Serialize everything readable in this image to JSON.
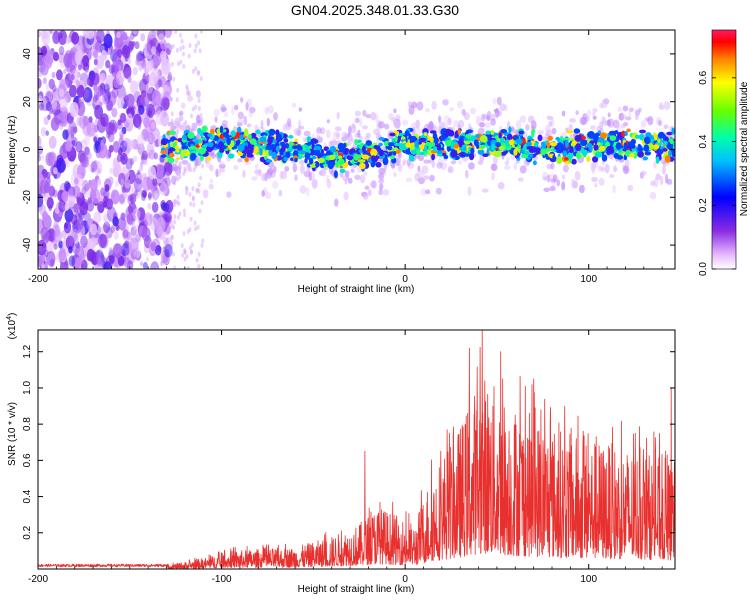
{
  "title": "GN04.2025.348.01.33.G30",
  "chart_data": [
    {
      "type": "heatmap",
      "name": "spectrogram",
      "xlabel": "Height of straight line (km)",
      "ylabel": "Frequency (Hz)",
      "xlim": [
        -200,
        147
      ],
      "ylim": [
        -50,
        50
      ],
      "xticks": [
        -200,
        -100,
        0,
        100
      ],
      "yticks": [
        -40,
        -20,
        0,
        20,
        40
      ],
      "colorbar": {
        "label": "Normalized spectral amplitude",
        "range": [
          0,
          0.75
        ],
        "ticks": [
          0.0,
          0.2,
          0.4,
          0.6
        ]
      },
      "ridge_centerline": [
        {
          "x": -130,
          "y": 1
        },
        {
          "x": -115,
          "y": 2
        },
        {
          "x": -100,
          "y": 3
        },
        {
          "x": -85,
          "y": 2
        },
        {
          "x": -70,
          "y": 1
        },
        {
          "x": -55,
          "y": -1
        },
        {
          "x": -40,
          "y": -4
        },
        {
          "x": -30,
          "y": -3
        },
        {
          "x": -15,
          "y": -1
        },
        {
          "x": 0,
          "y": 2
        },
        {
          "x": 15,
          "y": 2
        },
        {
          "x": 30,
          "y": 2
        },
        {
          "x": 45,
          "y": 2
        },
        {
          "x": 60,
          "y": 3
        },
        {
          "x": 75,
          "y": 0
        },
        {
          "x": 90,
          "y": 1
        },
        {
          "x": 105,
          "y": 2
        },
        {
          "x": 120,
          "y": 2
        },
        {
          "x": 147,
          "y": 2
        }
      ]
    },
    {
      "type": "line",
      "name": "snr",
      "xlabel": "Height of straight line (km)",
      "ylabel": "SNR (10 * v/v)",
      "y_scale_label": "(x10",
      "y_scale_exponent": "4",
      "xlim": [
        -200,
        147
      ],
      "ylim": [
        0,
        1.32
      ],
      "xticks": [
        -200,
        -100,
        0,
        100
      ],
      "yticks": [
        0.2,
        0.4,
        0.6,
        0.8,
        1.0,
        1.2
      ],
      "envelope": [
        {
          "x": -200,
          "y": 0.02
        },
        {
          "x": -150,
          "y": 0.02
        },
        {
          "x": -125,
          "y": 0.03
        },
        {
          "x": -110,
          "y": 0.06
        },
        {
          "x": -95,
          "y": 0.1
        },
        {
          "x": -80,
          "y": 0.11
        },
        {
          "x": -60,
          "y": 0.12
        },
        {
          "x": -40,
          "y": 0.18
        },
        {
          "x": -25,
          "y": 0.25
        },
        {
          "x": -15,
          "y": 0.35
        },
        {
          "x": -5,
          "y": 0.3
        },
        {
          "x": 5,
          "y": 0.25
        },
        {
          "x": 15,
          "y": 0.55
        },
        {
          "x": 30,
          "y": 0.8
        },
        {
          "x": 42,
          "y": 1.1
        },
        {
          "x": 55,
          "y": 0.95
        },
        {
          "x": 70,
          "y": 0.85
        },
        {
          "x": 90,
          "y": 0.75
        },
        {
          "x": 110,
          "y": 0.7
        },
        {
          "x": 130,
          "y": 0.65
        },
        {
          "x": 147,
          "y": 0.6
        }
      ],
      "peaks": [
        {
          "x": 42,
          "y": 1.32
        },
        {
          "x": 35,
          "y": 1.22
        },
        {
          "x": 52,
          "y": 1.2
        },
        {
          "x": 70,
          "y": 1.05
        },
        {
          "x": 145,
          "y": 1.0
        },
        {
          "x": -22,
          "y": 0.65
        }
      ]
    }
  ]
}
